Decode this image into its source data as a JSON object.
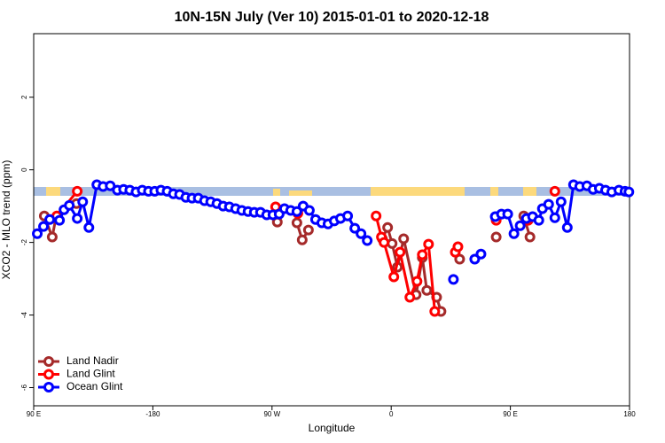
{
  "chart_data": {
    "type": "line",
    "title": "10N-15N July (Ver 10)   2015-01-01 to 2020-12-18",
    "xlabel": "Longitude",
    "ylabel": "XCO2 - MLO trend (ppm)",
    "xlim": [
      -270,
      180
    ],
    "ylim": [
      -6.5,
      3.75
    ],
    "xticks": [
      {
        "value": -270,
        "label": "90 E"
      },
      -180,
      {
        "value": -90,
        "label": "90 W"
      },
      0,
      {
        "value": 90,
        "label": "90 E"
      },
      180
    ],
    "yticks": [
      -6,
      -4,
      -2,
      0,
      2
    ],
    "legend": "bottom-left",
    "series": [
      {
        "name": "Land Nadir",
        "color": "#a52a2a",
        "x": [
          -262.0,
          -256.0,
          -253.2,
          -237.7,
          null,
          -86.0,
          null,
          -71.2,
          -67.2,
          -62.5,
          null,
          -6.7,
          -2.7,
          0.7,
          4.7,
          9.4,
          18.8,
          23.5,
          26.9,
          34.3,
          37.6,
          null,
          51.7,
          null,
          79.3,
          null,
          100.1,
          104.8
        ],
        "values": [
          -1.27,
          -1.85,
          -1.32,
          -0.93,
          null,
          -1.44,
          null,
          -1.46,
          -1.93,
          -1.66,
          null,
          -1.9,
          -1.59,
          -2.03,
          -2.68,
          -1.9,
          -3.44,
          -2.42,
          -3.32,
          -3.51,
          -3.9,
          null,
          -2.46,
          null,
          -1.85,
          null,
          -1.27,
          -1.85
        ]
      },
      {
        "name": "Land Glint",
        "color": "#ff0000",
        "x": [
          -252.5,
          -237.1,
          null,
          -87.3,
          null,
          -70.5,
          null,
          -11.4,
          -7.4,
          -5.4,
          2.0,
          6.7,
          14.1,
          19.5,
          23.5,
          28.2,
          32.9,
          null,
          48.4,
          50.4,
          null,
          79.3,
          null,
          103.4,
          null,
          123.6
        ],
        "values": [
          -1.27,
          -0.59,
          null,
          -1.02,
          null,
          -1.2,
          null,
          -1.27,
          -1.85,
          -2.0,
          -2.95,
          -2.27,
          -3.51,
          -3.07,
          -2.34,
          -2.05,
          -3.9,
          null,
          -2.27,
          -2.12,
          null,
          -1.39,
          null,
          -1.39,
          null,
          -0.59
        ]
      },
      {
        "name": "Ocean Glint",
        "color": "#0000ff",
        "x": [
          -267.3,
          -262.6,
          -257.9,
          -250.5,
          -247.1,
          -243.1,
          -237.1,
          -233.0,
          -228.3,
          -222.3,
          -217.6,
          -212.2,
          -206.8,
          -202.1,
          -197.4,
          -192.7,
          -188.0,
          -183.3,
          -178.6,
          -173.9,
          -169.2,
          -164.5,
          -159.8,
          -155.1,
          -150.4,
          -145.7,
          -141.0,
          -136.3,
          -131.6,
          -126.9,
          -122.2,
          -117.5,
          -112.8,
          -108.1,
          -103.4,
          -98.7,
          -94.0,
          -89.3,
          -84.6,
          -80.6,
          -75.9,
          -71.2,
          -66.5,
          -61.8,
          -57.1,
          -52.4,
          -47.7,
          -43.0,
          -38.3,
          -32.9,
          -27.5,
          -22.8,
          -18.1,
          null,
          47.0,
          null,
          63.1,
          67.8,
          null,
          78.6,
          83.3,
          88.0,
          92.7,
          97.4,
          102.1,
          106.8,
          111.5,
          114.2,
          118.9,
          123.6,
          128.3,
          133.0,
          137.7,
          142.4,
          147.8,
          152.5,
          157.2,
          161.9,
          166.6,
          172.0,
          176.6,
          179.5
        ],
        "values": [
          -1.76,
          -1.56,
          -1.37,
          -1.39,
          -1.1,
          -0.98,
          -1.34,
          -0.88,
          -1.59,
          -0.41,
          -0.46,
          -0.44,
          -0.56,
          -0.54,
          -0.56,
          -0.61,
          -0.56,
          -0.59,
          -0.59,
          -0.56,
          -0.59,
          -0.66,
          -0.68,
          -0.76,
          -0.78,
          -0.78,
          -0.85,
          -0.88,
          -0.93,
          -1.0,
          -1.02,
          -1.07,
          -1.12,
          -1.15,
          -1.17,
          -1.17,
          -1.24,
          -1.24,
          -1.22,
          -1.07,
          -1.12,
          -1.15,
          -1.0,
          -1.12,
          -1.37,
          -1.46,
          -1.49,
          -1.41,
          -1.34,
          -1.27,
          -1.61,
          -1.76,
          -1.95,
          null,
          -3.02,
          null,
          -2.46,
          -2.32,
          null,
          -1.29,
          -1.22,
          -1.22,
          -1.76,
          -1.54,
          -1.34,
          -1.29,
          -1.39,
          -1.07,
          -0.95,
          -1.32,
          -0.88,
          -1.59,
          -0.41,
          -0.46,
          -0.44,
          -0.54,
          -0.51,
          -0.56,
          -0.61,
          -0.56,
          -0.59,
          -0.61
        ]
      }
    ]
  }
}
